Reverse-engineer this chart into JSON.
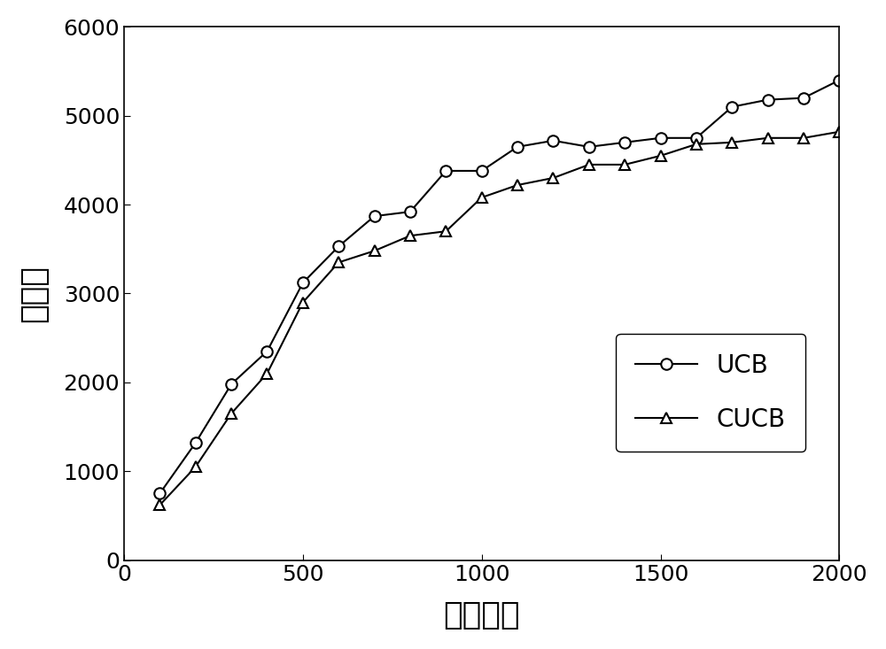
{
  "ucb_x": [
    100,
    200,
    300,
    400,
    500,
    600,
    700,
    800,
    900,
    1000,
    1100,
    1200,
    1300,
    1400,
    1500,
    1600,
    1700,
    1800,
    1900,
    2000
  ],
  "ucb_y": [
    750,
    1320,
    1980,
    2350,
    3120,
    3530,
    3870,
    3920,
    4380,
    4380,
    4650,
    4720,
    4650,
    4700,
    4750,
    4750,
    5100,
    5180,
    5200,
    5400
  ],
  "cucb_x": [
    100,
    200,
    300,
    400,
    500,
    600,
    700,
    800,
    900,
    1000,
    1100,
    1200,
    1300,
    1400,
    1500,
    1600,
    1700,
    1800,
    1900,
    2000
  ],
  "cucb_y": [
    620,
    1050,
    1650,
    2100,
    2900,
    3350,
    3480,
    3650,
    3700,
    4080,
    4220,
    4300,
    4450,
    4450,
    4550,
    4680,
    4700,
    4750,
    4750,
    4820
  ],
  "xlabel": "迭代次数",
  "ylabel": "后悔値",
  "xlim": [
    0,
    2000
  ],
  "ylim": [
    0,
    6000
  ],
  "xticks": [
    0,
    500,
    1000,
    1500,
    2000
  ],
  "yticks": [
    0,
    1000,
    2000,
    3000,
    4000,
    5000,
    6000
  ],
  "ucb_label": "UCB",
  "cucb_label": "CUCB",
  "line_color": "#000000",
  "background_color": "#ffffff",
  "marker_size": 9,
  "line_width": 1.5,
  "legend_fontsize": 20,
  "axis_label_fontsize": 26,
  "tick_fontsize": 18
}
